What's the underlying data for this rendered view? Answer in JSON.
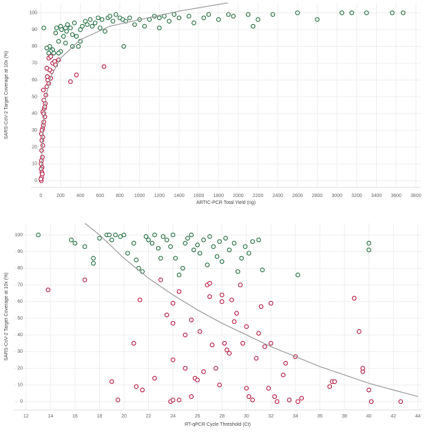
{
  "chart_data": [
    {
      "type": "scatter",
      "x_label": "ARTIC-PCR Total Yield (ng)",
      "y_label": "SARS-CoV-2 Target Coverage at 10x (%)",
      "xlim": [
        -100,
        3850
      ],
      "ylim": [
        -4,
        106
      ],
      "xticks": [
        0,
        200,
        400,
        600,
        800,
        1000,
        1200,
        1400,
        1600,
        1800,
        2000,
        2200,
        2400,
        2600,
        2800,
        3000,
        3200,
        3400,
        3600,
        3800
      ],
      "yticks": [
        0,
        10,
        20,
        30,
        40,
        50,
        60,
        70,
        80,
        90,
        100
      ],
      "grid": true,
      "series": [
        {
          "color": "#1e6b3c",
          "mode": "markers",
          "x": [
            30,
            120,
            100,
            90,
            80,
            150,
            160,
            180,
            200,
            210,
            230,
            260,
            270,
            300,
            320,
            340,
            360,
            380,
            400,
            420,
            450,
            470,
            500,
            520,
            550,
            580,
            600,
            620,
            650,
            680,
            700,
            730,
            760,
            800,
            830,
            860,
            900,
            950,
            1000,
            1050,
            1100,
            1150,
            1200,
            1250,
            1300,
            1350,
            1400,
            1500,
            1550,
            1650,
            1700,
            1800,
            1900,
            1950,
            2100,
            2150,
            2200,
            2350,
            2600,
            2800,
            3050,
            3150,
            3300,
            3560,
            3670,
            200,
            250,
            130,
            60,
            250,
            320,
            400,
            840,
            1200,
            180
          ],
          "values": [
            91,
            78,
            77,
            80,
            76,
            88,
            91,
            83,
            92,
            90,
            86,
            89,
            93,
            91,
            87,
            94,
            86,
            80,
            90,
            92,
            95,
            93,
            96,
            92,
            94,
            97,
            91,
            96,
            89,
            97,
            98,
            95,
            99,
            97,
            96,
            95,
            97,
            93,
            96,
            92,
            96,
            98,
            97,
            98,
            95,
            99,
            97,
            98,
            94,
            97,
            99,
            96,
            99,
            98,
            99,
            92,
            96,
            99,
            100,
            96,
            100,
            100,
            100,
            100,
            100,
            77,
            82,
            76,
            79,
            91,
            80,
            83,
            80,
            91,
            76
          ]
        },
        {
          "color": "#b5163f",
          "mode": "markers",
          "x": [
            5,
            8,
            10,
            12,
            6,
            15,
            8,
            20,
            10,
            5,
            18,
            25,
            30,
            40,
            20,
            35,
            45,
            30,
            50,
            25,
            60,
            80,
            70,
            100,
            110,
            90,
            60,
            120,
            140,
            180,
            80,
            100,
            300,
            360,
            640,
            0,
            15,
            3,
            2,
            20,
            12,
            40,
            65,
            150,
            30
          ],
          "values": [
            0,
            2,
            5,
            8,
            12,
            14,
            18,
            21,
            24,
            28,
            31,
            33,
            35,
            38,
            41,
            43,
            46,
            48,
            51,
            54,
            56,
            58,
            60,
            61,
            65,
            66,
            67,
            70,
            71,
            72,
            73,
            74,
            59,
            63,
            68,
            1,
            4,
            7,
            10,
            26,
            30,
            44,
            62,
            69,
            40
          ]
        },
        {
          "color": "#999999",
          "mode": "line",
          "x": [
            5,
            20,
            50,
            100,
            200,
            400,
            700,
            1000,
            1400,
            1900
          ],
          "values": [
            5,
            30,
            50,
            62,
            73,
            84,
            92,
            96,
            101,
            106
          ]
        }
      ]
    },
    {
      "type": "scatter",
      "x_label": "RT-qPCR Cycle Threshold (Ct)",
      "y_label": "SARS-CoV-2 Target Coverage at 10x (%)",
      "xlim": [
        11,
        44.3
      ],
      "ylim": [
        -5,
        107
      ],
      "xticks": [
        12,
        14,
        16,
        18,
        20,
        22,
        24,
        26,
        28,
        30,
        32,
        34,
        36,
        38,
        40,
        42,
        44
      ],
      "yticks": [
        0,
        10,
        20,
        30,
        40,
        50,
        60,
        70,
        80,
        90,
        100
      ],
      "grid": true,
      "series": [
        {
          "color": "#1e6b3c",
          "mode": "markers",
          "x": [
            13,
            15.7,
            16,
            16.8,
            17.5,
            17.5,
            18,
            18.6,
            18.8,
            19,
            19.3,
            19.7,
            20,
            20.3,
            20.8,
            21,
            21.2,
            21.5,
            21.8,
            22,
            22.3,
            22.5,
            22.8,
            23,
            23.2,
            23.5,
            23.8,
            24,
            24.2,
            24.5,
            24.8,
            25,
            25.2,
            25.5,
            25.7,
            26,
            26.2,
            26.5,
            26.8,
            27,
            27.3,
            27.6,
            27.8,
            28,
            28.3,
            28.6,
            29,
            29.3,
            29.6,
            29.9,
            30.2,
            30.5,
            31,
            31.3,
            34.2,
            40,
            40
          ],
          "values": [
            100,
            97,
            95,
            93,
            86,
            83,
            98,
            100,
            100,
            97,
            100,
            99,
            100,
            89,
            95,
            85,
            80,
            78,
            99,
            97,
            95,
            100,
            92,
            86,
            99,
            97,
            93,
            100,
            86,
            76,
            80,
            95,
            98,
            100,
            91,
            94,
            89,
            97,
            82,
            99,
            93,
            87,
            96,
            84,
            98,
            91,
            95,
            78,
            86,
            93,
            89,
            96,
            97,
            79,
            76,
            95,
            91
          ]
        },
        {
          "color": "#b5163f",
          "mode": "markers",
          "x": [
            13.8,
            16.8,
            19,
            19.5,
            20.8,
            21.3,
            21,
            21.5,
            22.5,
            23,
            23.5,
            23.8,
            24,
            24,
            24,
            24,
            24.5,
            24.5,
            25,
            25,
            25.5,
            25.8,
            25.5,
            26,
            26.2,
            26.5,
            26.8,
            27,
            27,
            27.2,
            27.5,
            27.8,
            28,
            28,
            28.2,
            28.4,
            28.6,
            28.8,
            29,
            29.2,
            29.5,
            29.7,
            30,
            30,
            30.2,
            30.5,
            30.8,
            31,
            31.2,
            31.5,
            31.8,
            32,
            32,
            32.3,
            32.5,
            33,
            33.2,
            33.5,
            34,
            34.2,
            34.5,
            36.8,
            37,
            37.2,
            38.8,
            39.2,
            39.5,
            39.5,
            40,
            40.2,
            42.6
          ],
          "values": [
            67,
            73,
            12,
            1,
            35,
            61,
            9,
            7,
            14,
            73,
            52,
            0,
            25,
            59,
            47,
            1,
            1,
            66,
            40,
            20,
            49,
            14,
            3,
            13,
            42,
            18,
            70,
            71,
            63,
            34,
            20,
            10,
            64,
            60,
            35,
            31,
            29,
            61,
            48,
            53,
            70,
            35,
            45,
            8,
            3,
            1,
            26,
            41,
            57,
            33,
            8,
            35,
            59,
            3,
            0,
            16,
            23,
            1,
            27,
            0,
            2,
            9,
            12,
            12,
            62,
            42,
            18,
            20,
            7,
            0,
            0
          ]
        },
        {
          "color": "#999999",
          "mode": "line",
          "x": [
            16.8,
            18,
            20,
            22,
            24,
            26,
            28,
            30,
            32,
            34,
            36,
            38,
            40,
            42,
            44
          ],
          "values": [
            107,
            100,
            86,
            74,
            64,
            55,
            47,
            40,
            33,
            27,
            21,
            16,
            11,
            7,
            3
          ]
        }
      ]
    }
  ]
}
